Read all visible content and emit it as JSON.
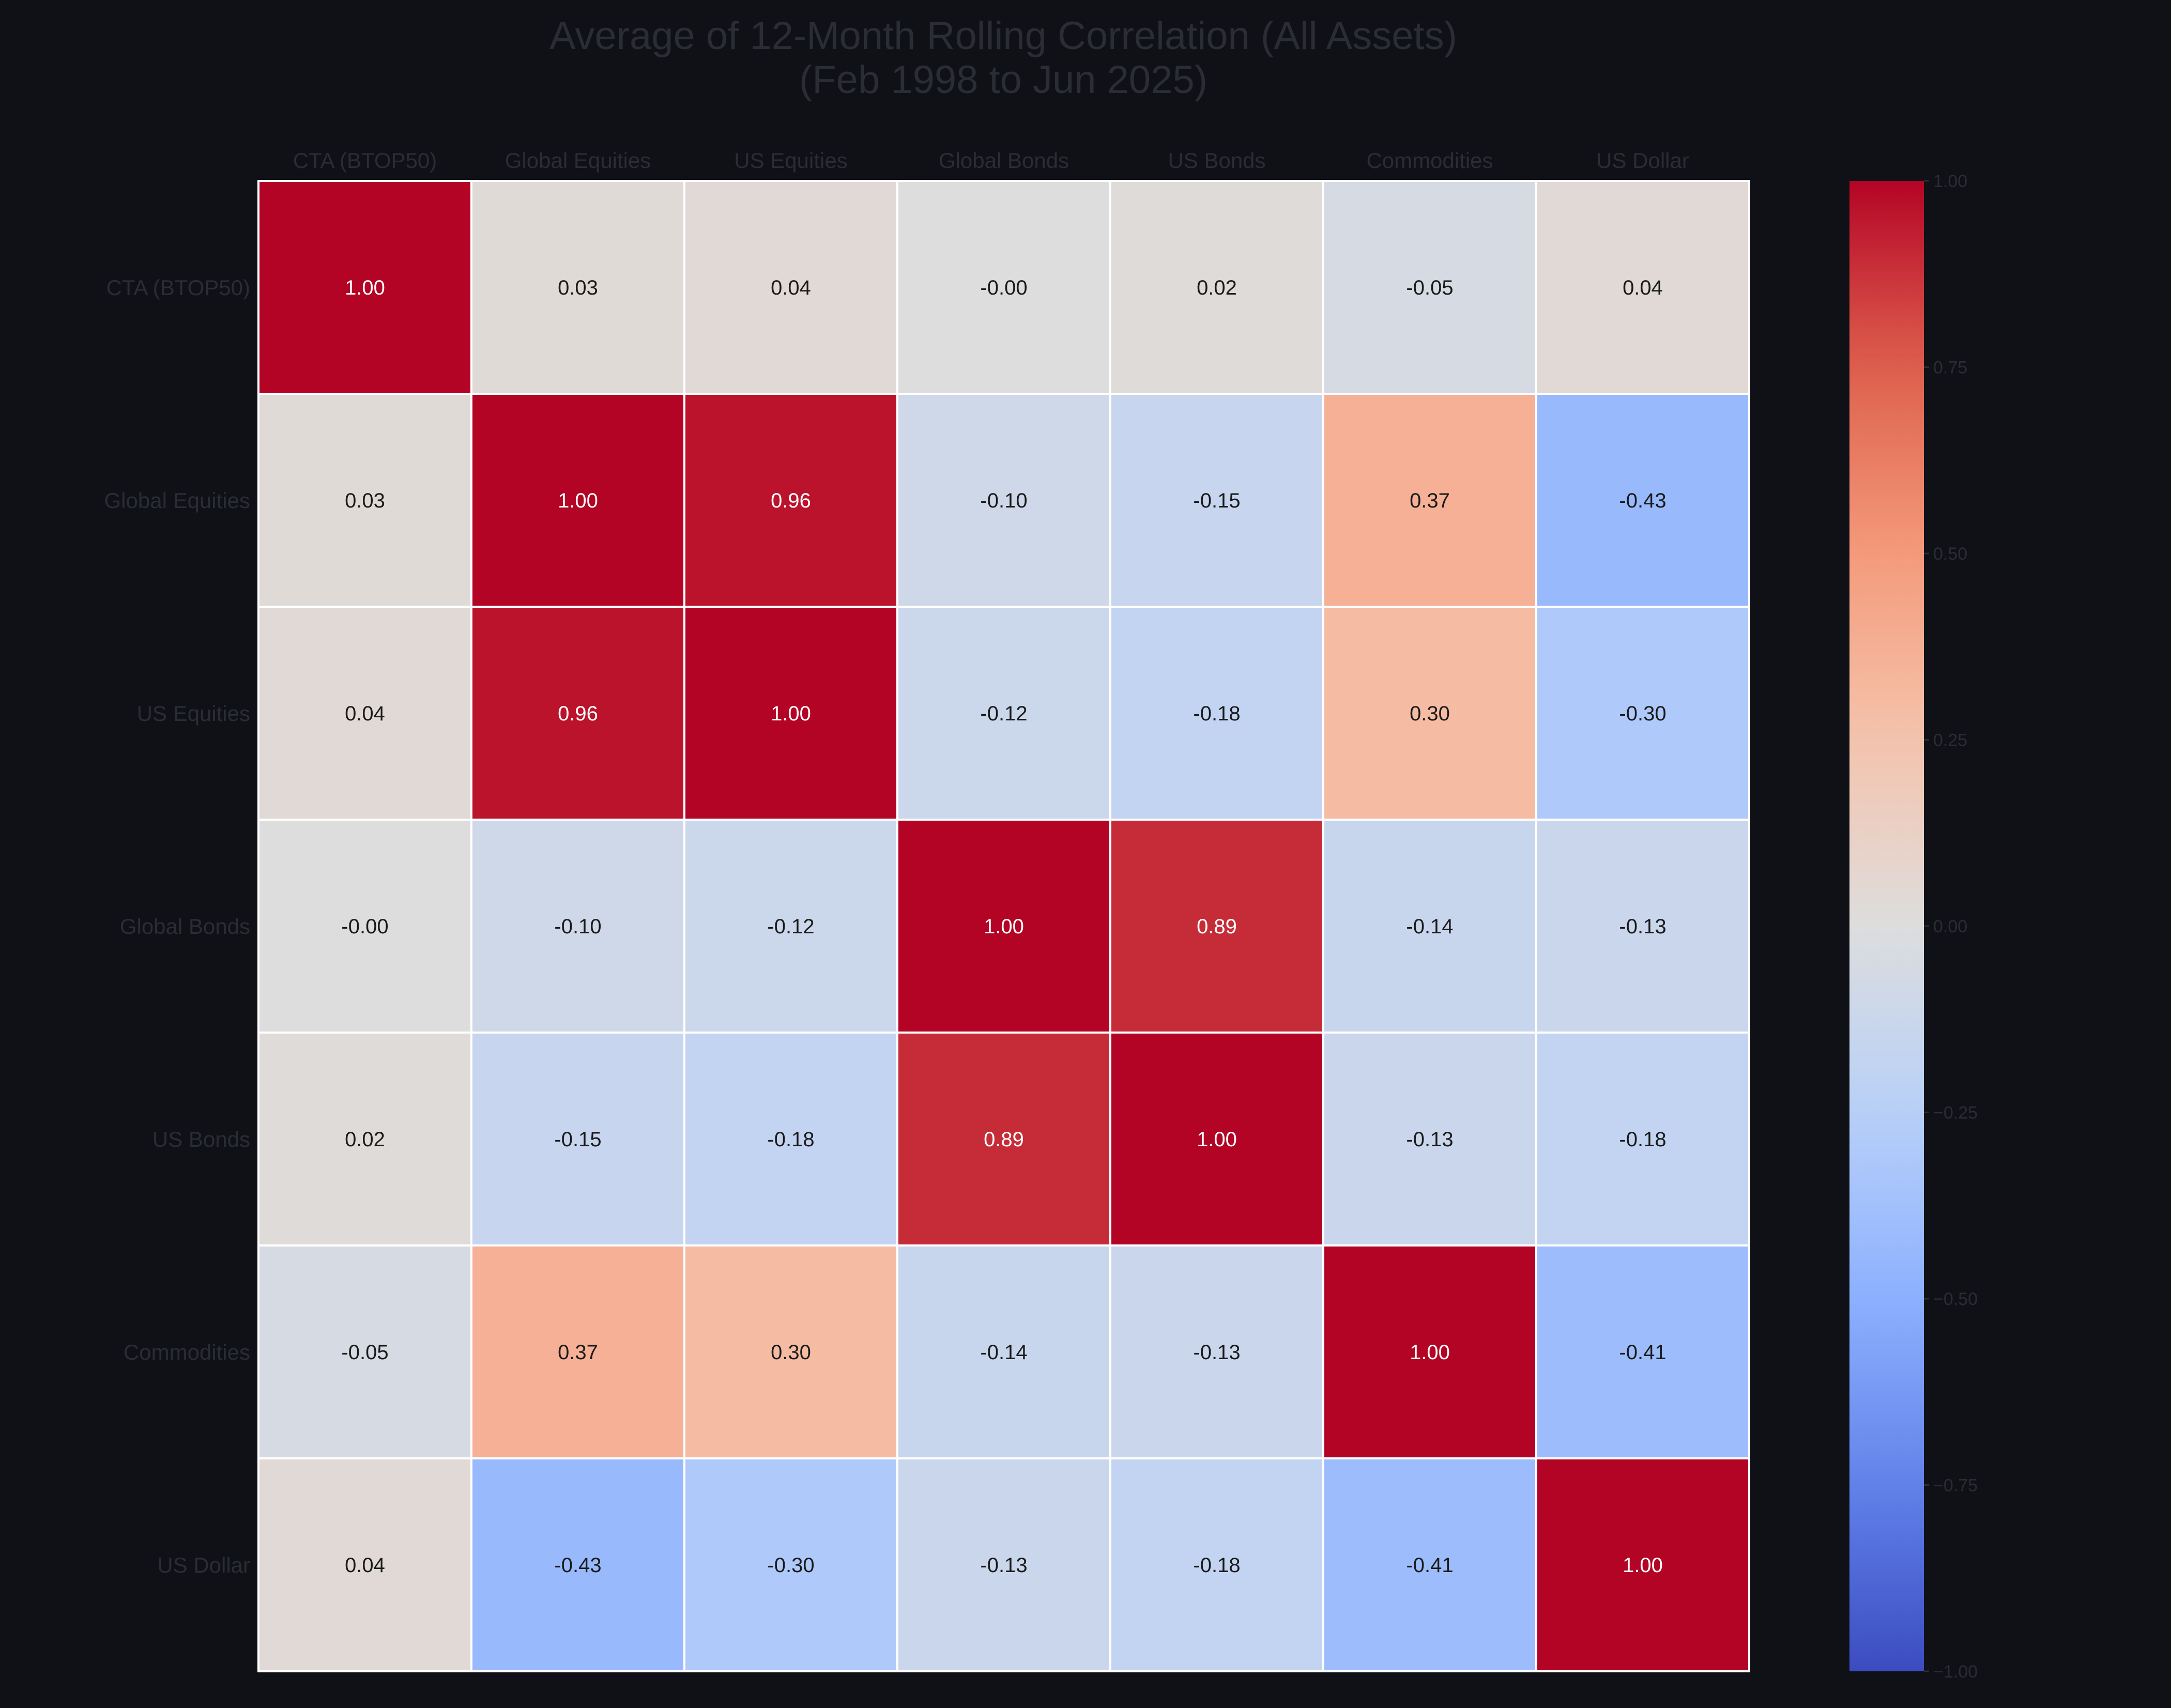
{
  "chart_data": {
    "type": "heatmap",
    "title_lines": [
      "Average of 12-Month Rolling Correlation (All Assets)",
      "(Feb 1998 to Jun 2025)"
    ],
    "x_labels": [
      "CTA (BTOP50)",
      "Global Equities",
      "US Equities",
      "Global Bonds",
      "US Bonds",
      "Commodities",
      "US Dollar"
    ],
    "y_labels": [
      "CTA (BTOP50)",
      "Global Equities",
      "US Equities",
      "Global Bonds",
      "US Bonds",
      "Commodities",
      "US Dollar"
    ],
    "values": [
      [
        1.0,
        0.03,
        0.04,
        -0.0,
        0.02,
        -0.05,
        0.04
      ],
      [
        0.03,
        1.0,
        0.96,
        -0.1,
        -0.15,
        0.37,
        -0.43
      ],
      [
        0.04,
        0.96,
        1.0,
        -0.12,
        -0.18,
        0.3,
        -0.3
      ],
      [
        -0.0,
        -0.1,
        -0.12,
        1.0,
        0.89,
        -0.14,
        -0.13
      ],
      [
        0.02,
        -0.15,
        -0.18,
        0.89,
        1.0,
        -0.13,
        -0.18
      ],
      [
        -0.05,
        0.37,
        0.3,
        -0.14,
        -0.13,
        1.0,
        -0.41
      ],
      [
        0.04,
        -0.43,
        -0.3,
        -0.13,
        -0.18,
        -0.41,
        1.0
      ]
    ],
    "cell_labels": [
      [
        "1.00",
        "0.03",
        "0.04",
        "-0.00",
        "0.02",
        "-0.05",
        "0.04"
      ],
      [
        "0.03",
        "1.00",
        "0.96",
        "-0.10",
        "-0.15",
        "0.37",
        "-0.43"
      ],
      [
        "0.04",
        "0.96",
        "1.00",
        "-0.12",
        "-0.18",
        "0.30",
        "-0.30"
      ],
      [
        "-0.00",
        "-0.10",
        "-0.12",
        "1.00",
        "0.89",
        "-0.14",
        "-0.13"
      ],
      [
        "0.02",
        "-0.15",
        "-0.18",
        "0.89",
        "1.00",
        "-0.13",
        "-0.18"
      ],
      [
        "-0.05",
        "0.37",
        "0.30",
        "-0.14",
        "-0.13",
        "1.00",
        "-0.41"
      ],
      [
        "0.04",
        "-0.43",
        "-0.30",
        "-0.13",
        "-0.18",
        "-0.41",
        "1.00"
      ]
    ],
    "colorbar": {
      "range": [
        -1.0,
        1.0
      ],
      "ticks": [
        1.0,
        0.75,
        0.5,
        0.25,
        0.0,
        -0.25,
        -0.5,
        -0.75,
        -1.0
      ],
      "tick_labels": [
        "1.00",
        "0.75",
        "0.50",
        "0.25",
        "0.00",
        "−0.25",
        "−0.50",
        "−0.75",
        "−1.00"
      ]
    },
    "colormap": "coolwarm",
    "x_axis_position": "top",
    "grid": false
  },
  "colors": {
    "background": "#0f1117",
    "label_text": "#2a2d33",
    "title_text": "#2a2d33",
    "cell_border": "#ffffff",
    "annotation_dark": "#1a1a1a",
    "annotation_light": "#ffffff"
  }
}
